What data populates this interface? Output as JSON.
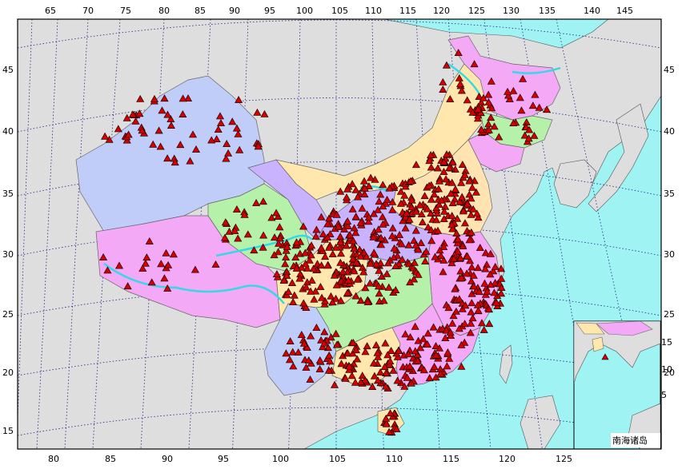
{
  "map": {
    "lon_labels_top": [
      "65",
      "70",
      "75",
      "80",
      "85",
      "90",
      "95",
      "100",
      "105",
      "110",
      "115",
      "120",
      "125",
      "130",
      "135",
      "140",
      "145"
    ],
    "lon_labels_bottom": [
      "80",
      "85",
      "90",
      "95",
      "100",
      "105",
      "110",
      "115",
      "120",
      "125"
    ],
    "lat_labels_left": [
      "45",
      "40",
      "35",
      "30",
      "25",
      "20",
      "15"
    ],
    "lat_labels_right": [
      "45",
      "40",
      "35",
      "30",
      "25",
      "20"
    ],
    "inset_lat_labels": [
      "15",
      "10",
      "5"
    ],
    "inset_title": "南海诸岛",
    "colors": {
      "ocean": "#9ff3f3",
      "land_outside": "#dedede",
      "graticule": "#22228a",
      "station_fill": "#d40000",
      "station_stroke": "#000000",
      "river_lake": "#35d9e6",
      "regions": [
        "#c0cdf9",
        "#f3a9f6",
        "#b6f1aa",
        "#ffe7ad",
        "#c9b3ff",
        "#ffe4b2"
      ]
    },
    "icons": [
      "station-triangle-icon"
    ]
  }
}
